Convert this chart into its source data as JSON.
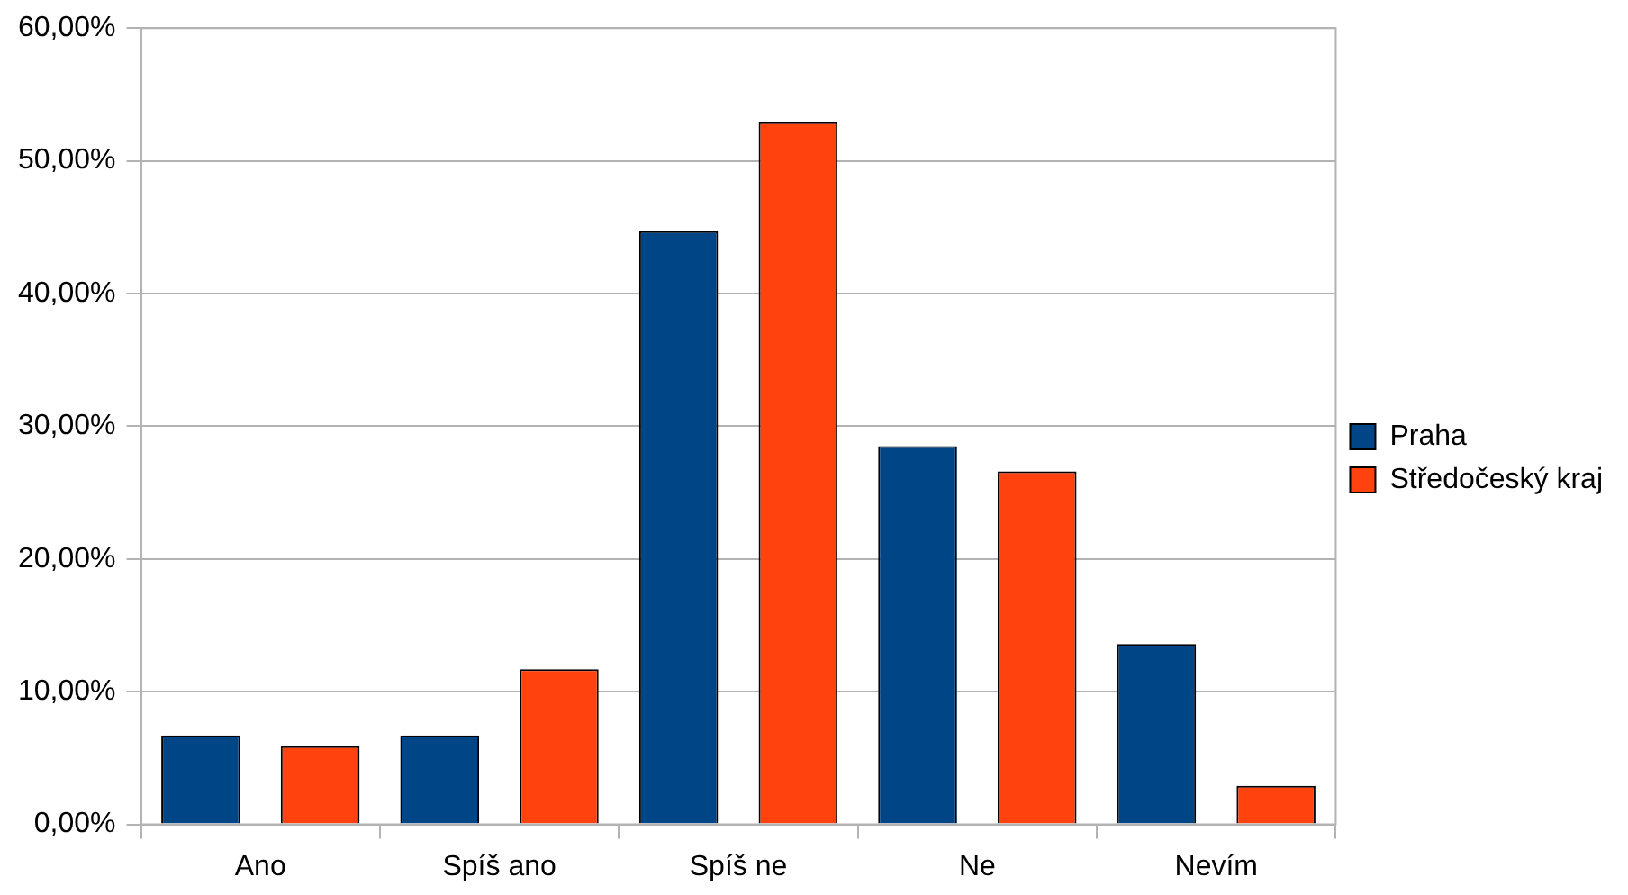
{
  "chart_data": {
    "type": "bar",
    "categories": [
      "Ano",
      "Spíš ano",
      "Spíš ne",
      "Ne",
      "Nevím"
    ],
    "series": [
      {
        "name": "Praha",
        "color": "#004586",
        "values": [
          6.7,
          6.7,
          44.7,
          28.5,
          13.6
        ]
      },
      {
        "name": "Středočeský kraj",
        "color": "#ff420e",
        "values": [
          5.9,
          11.7,
          52.9,
          26.6,
          2.9
        ]
      }
    ],
    "ylim": [
      0,
      60
    ],
    "yticks": [
      {
        "value": 0,
        "label": "0,00%"
      },
      {
        "value": 10,
        "label": "10,00%"
      },
      {
        "value": 20,
        "label": "20,00%"
      },
      {
        "value": 30,
        "label": "30,00%"
      },
      {
        "value": 40,
        "label": "40,00%"
      },
      {
        "value": 50,
        "label": "50,00%"
      },
      {
        "value": 60,
        "label": "60,00%"
      }
    ],
    "grid": "y",
    "legend": "right"
  }
}
